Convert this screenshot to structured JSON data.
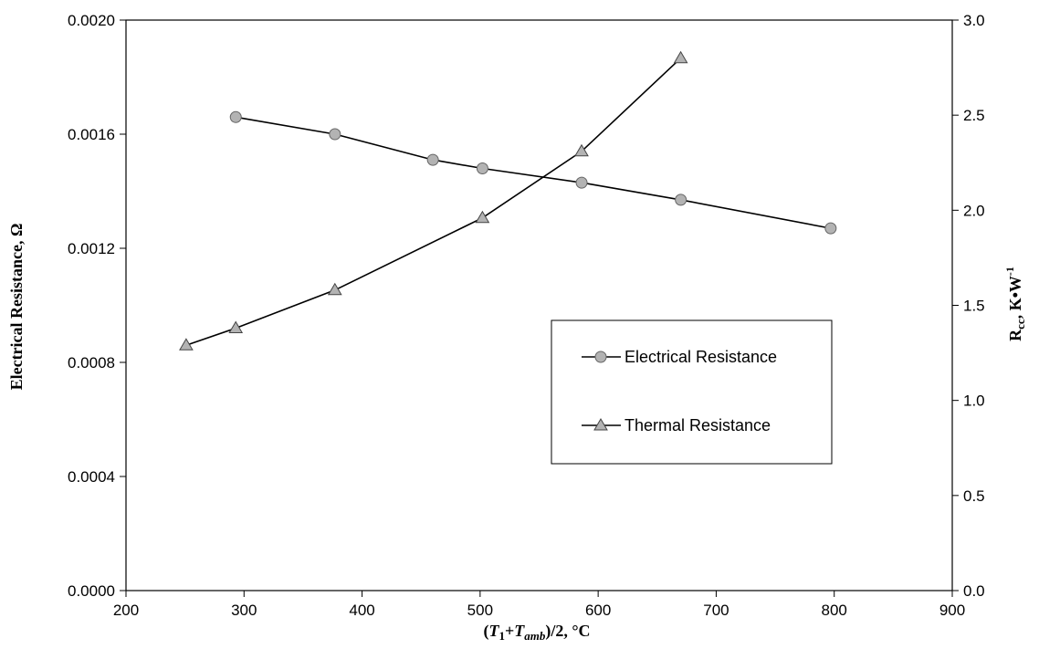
{
  "chart_data": {
    "type": "line",
    "xlabel": "(T1+Tamb)/2, °C",
    "xlabel_parts": [
      "(",
      "T",
      "1",
      "+",
      "T",
      "amb",
      ")/2, °C"
    ],
    "ylabel_left": "Electrical Resistance, Ω",
    "ylabel_right_parts": [
      "R",
      "cc",
      ", K•W",
      "-1"
    ],
    "xlim": [
      200,
      900
    ],
    "ylim_left": [
      0,
      0.002
    ],
    "ylim_right": [
      0,
      3.0
    ],
    "x_ticks": [
      "200",
      "300",
      "400",
      "500",
      "600",
      "700",
      "800",
      "900"
    ],
    "y_left_ticks": [
      "0.0000",
      "0.0004",
      "0.0008",
      "0.0012",
      "0.0016",
      "0.0020"
    ],
    "y_right_ticks": [
      "0.0",
      "0.5",
      "1.0",
      "1.5",
      "2.0",
      "2.5",
      "3.0"
    ],
    "grid": false,
    "legend_position": "center-right",
    "series": [
      {
        "name": "Electrical Resistance",
        "axis": "left",
        "marker": "circle",
        "color": "#000000",
        "marker_fill": "#b3b3b3",
        "x": [
          293,
          377,
          460,
          502,
          586,
          670,
          797
        ],
        "y": [
          0.00166,
          0.0016,
          0.00151,
          0.00148,
          0.00143,
          0.00137,
          0.00127
        ]
      },
      {
        "name": "Thermal Resistance",
        "axis": "right",
        "marker": "triangle",
        "color": "#000000",
        "marker_fill": "#b3b3b3",
        "x": [
          251,
          293,
          377,
          502,
          586,
          670
        ],
        "y": [
          1.29,
          1.38,
          1.58,
          1.96,
          2.31,
          2.8
        ]
      }
    ]
  }
}
